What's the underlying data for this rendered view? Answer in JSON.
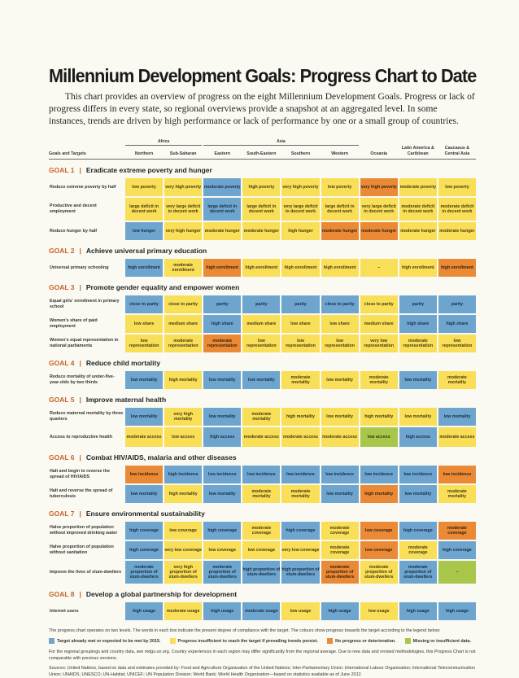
{
  "title": "Millennium Development Goals: Progress Chart to Date",
  "intro": "This chart provides an overview of progress on the eight Millennium Development Goals. Progress or lack of progress differs in every state, so regional overviews provide a snapshot at an aggregated level. In some instances, trends are driven by high performance or lack of performance by one or a small group of countries.",
  "header": {
    "africa": "Africa",
    "asia": "Asia",
    "goals_and_targets": "Goals and Targets",
    "columns": [
      "Northern",
      "Sub-Saharan",
      "Eastern",
      "South-Eastern",
      "Southern",
      "Western",
      "Oceania",
      "Latin America & Caribbean",
      "Caucasus & Central Asia"
    ]
  },
  "colors": {
    "blue": "#6da5cf",
    "yellow": "#f9de57",
    "orange": "#ea8a37",
    "green": "#a7c64a"
  },
  "goals": [
    {
      "num": "GOAL 1",
      "title": "Eradicate extreme poverty and hunger",
      "rows": [
        {
          "label": "Reduce extreme poverty by half",
          "h": "h1",
          "cells": [
            [
              "low poverty",
              "yellow"
            ],
            [
              "very high poverty",
              "yellow"
            ],
            [
              "moderate poverty",
              "blue"
            ],
            [
              "high poverty",
              "yellow"
            ],
            [
              "very high poverty",
              "yellow"
            ],
            [
              "low poverty",
              "yellow"
            ],
            [
              "very high poverty",
              "orange"
            ],
            [
              "moderate poverty",
              "yellow"
            ],
            [
              "low poverty",
              "yellow"
            ]
          ]
        },
        {
          "label": "Productive and decent employment",
          "h": "h3",
          "cells": [
            [
              "large deficit in decent work",
              "yellow"
            ],
            [
              "very large deficit in decent work",
              "yellow"
            ],
            [
              "large deficit in decent work",
              "blue"
            ],
            [
              "large deficit in decent work",
              "yellow"
            ],
            [
              "very large deficit in decent work",
              "yellow"
            ],
            [
              "large deficit in decent work",
              "yellow"
            ],
            [
              "very large deficit in decent work",
              "yellow"
            ],
            [
              "moderate deficit in decent work",
              "yellow"
            ],
            [
              "moderate deficit in decent work",
              "yellow"
            ]
          ]
        },
        {
          "label": "Reduce hunger by half",
          "h": "h1",
          "cells": [
            [
              "low hunger",
              "blue"
            ],
            [
              "very high hunger",
              "yellow"
            ],
            [
              "moderate hunger",
              "yellow"
            ],
            [
              "moderate hunger",
              "yellow"
            ],
            [
              "high hunger",
              "yellow"
            ],
            [
              "moderate hunger",
              "orange"
            ],
            [
              "moderate hunger",
              "orange"
            ],
            [
              "moderate hunger",
              "yellow"
            ],
            [
              "moderate hunger",
              "yellow"
            ]
          ]
        }
      ]
    },
    {
      "num": "GOAL 2",
      "title": "Achieve universal primary education",
      "rows": [
        {
          "label": "Universal primary schooling",
          "h": "h1",
          "cells": [
            [
              "high enrollment",
              "blue"
            ],
            [
              "moderate enrollment",
              "yellow"
            ],
            [
              "high enrollment",
              "orange"
            ],
            [
              "high enrollment",
              "yellow"
            ],
            [
              "high enrollment",
              "yellow"
            ],
            [
              "high enrollment",
              "yellow"
            ],
            [
              "–",
              "yellow"
            ],
            [
              "high enrollment",
              "yellow"
            ],
            [
              "high enrollment",
              "orange"
            ]
          ]
        }
      ]
    },
    {
      "num": "GOAL 3",
      "title": "Promote gender equality and empower women",
      "rows": [
        {
          "label": "Equal girls' enrollment in primary school",
          "h": "h1",
          "cells": [
            [
              "close to parity",
              "blue"
            ],
            [
              "close to parity",
              "yellow"
            ],
            [
              "parity",
              "blue"
            ],
            [
              "parity",
              "blue"
            ],
            [
              "parity",
              "blue"
            ],
            [
              "close to parity",
              "blue"
            ],
            [
              "close to parity",
              "yellow"
            ],
            [
              "parity",
              "blue"
            ],
            [
              "parity",
              "blue"
            ]
          ]
        },
        {
          "label": "Women's share of paid employment",
          "h": "h1",
          "cells": [
            [
              "low share",
              "yellow"
            ],
            [
              "medium share",
              "yellow"
            ],
            [
              "high share",
              "blue"
            ],
            [
              "medium share",
              "yellow"
            ],
            [
              "low share",
              "yellow"
            ],
            [
              "low share",
              "yellow"
            ],
            [
              "medium share",
              "yellow"
            ],
            [
              "high share",
              "blue"
            ],
            [
              "high share",
              "blue"
            ]
          ]
        },
        {
          "label": "Women's equal representation in national parliaments",
          "h": "h1",
          "cells": [
            [
              "low representation",
              "yellow"
            ],
            [
              "moderate representation",
              "yellow"
            ],
            [
              "moderate representation",
              "orange"
            ],
            [
              "low representation",
              "yellow"
            ],
            [
              "low representation",
              "yellow"
            ],
            [
              "low representation",
              "yellow"
            ],
            [
              "very low representation",
              "yellow"
            ],
            [
              "moderate representation",
              "yellow"
            ],
            [
              "low representation",
              "yellow"
            ]
          ]
        }
      ]
    },
    {
      "num": "GOAL 4",
      "title": "Reduce child mortality",
      "rows": [
        {
          "label": "Reduce mortality of under-five-year-olds by two thirds",
          "h": "h1",
          "cells": [
            [
              "low mortality",
              "blue"
            ],
            [
              "high mortality",
              "yellow"
            ],
            [
              "low mortality",
              "blue"
            ],
            [
              "low mortality",
              "blue"
            ],
            [
              "moderate mortality",
              "yellow"
            ],
            [
              "low mortality",
              "yellow"
            ],
            [
              "moderate mortality",
              "yellow"
            ],
            [
              "low mortality",
              "blue"
            ],
            [
              "moderate mortality",
              "yellow"
            ]
          ]
        }
      ]
    },
    {
      "num": "GOAL 5",
      "title": "Improve maternal health",
      "rows": [
        {
          "label": "Reduce maternal mortality by three quarters",
          "h": "h1",
          "cells": [
            [
              "low mortality",
              "blue"
            ],
            [
              "very high mortality",
              "yellow"
            ],
            [
              "low mortality",
              "blue"
            ],
            [
              "moderate mortality",
              "yellow"
            ],
            [
              "high mortality",
              "yellow"
            ],
            [
              "low mortality",
              "yellow"
            ],
            [
              "high mortality",
              "yellow"
            ],
            [
              "low mortality",
              "yellow"
            ],
            [
              "low mortality",
              "blue"
            ]
          ]
        },
        {
          "label": "Access to reproductive health",
          "h": "h2",
          "cells": [
            [
              "moderate access",
              "yellow"
            ],
            [
              "low access",
              "yellow"
            ],
            [
              "high access",
              "blue"
            ],
            [
              "moderate access",
              "yellow"
            ],
            [
              "moderate access",
              "yellow"
            ],
            [
              "moderate access",
              "yellow"
            ],
            [
              "low access",
              "green"
            ],
            [
              "high access",
              "blue"
            ],
            [
              "moderate access",
              "yellow"
            ]
          ]
        }
      ]
    },
    {
      "num": "GOAL 6",
      "title": "Combat HIV/AIDS, malaria and other diseases",
      "rows": [
        {
          "label": "Halt and begin to reverse the spread of HIV/AIDS",
          "h": "h1",
          "cells": [
            [
              "low incidence",
              "orange"
            ],
            [
              "high incidence",
              "blue"
            ],
            [
              "low incidence",
              "blue"
            ],
            [
              "low incidence",
              "blue"
            ],
            [
              "low incidence",
              "blue"
            ],
            [
              "low incidence",
              "blue"
            ],
            [
              "low incidence",
              "blue"
            ],
            [
              "low incidence",
              "blue"
            ],
            [
              "low incidence",
              "orange"
            ]
          ]
        },
        {
          "label": "Halt and reverse the spread of tuberculosis",
          "h": "h1",
          "cells": [
            [
              "low mortality",
              "blue"
            ],
            [
              "high mortality",
              "yellow"
            ],
            [
              "low mortality",
              "blue"
            ],
            [
              "moderate mortality",
              "yellow"
            ],
            [
              "moderate mortality",
              "yellow"
            ],
            [
              "low mortality",
              "blue"
            ],
            [
              "high mortality",
              "orange"
            ],
            [
              "low mortality",
              "blue"
            ],
            [
              "moderate mortality",
              "yellow"
            ]
          ]
        }
      ]
    },
    {
      "num": "GOAL 7",
      "title": "Ensure environmental sustainability",
      "rows": [
        {
          "label": "Halve proportion of population without improved drinking water",
          "h": "h1",
          "cells": [
            [
              "high coverage",
              "blue"
            ],
            [
              "low coverage",
              "yellow"
            ],
            [
              "high coverage",
              "blue"
            ],
            [
              "moderate coverage",
              "yellow"
            ],
            [
              "high coverage",
              "blue"
            ],
            [
              "moderate coverage",
              "yellow"
            ],
            [
              "low coverage",
              "orange"
            ],
            [
              "high coverage",
              "blue"
            ],
            [
              "moderate coverage",
              "orange"
            ]
          ]
        },
        {
          "label": "Halve proportion of population without sanitation",
          "h": "h1",
          "cells": [
            [
              "high coverage",
              "blue"
            ],
            [
              "very low coverage",
              "yellow"
            ],
            [
              "low coverage",
              "yellow"
            ],
            [
              "low coverage",
              "yellow"
            ],
            [
              "very low coverage",
              "yellow"
            ],
            [
              "moderate coverage",
              "yellow"
            ],
            [
              "low coverage",
              "orange"
            ],
            [
              "moderate coverage",
              "yellow"
            ],
            [
              "high coverage",
              "blue"
            ]
          ]
        },
        {
          "label": "Improve the lives of slum-dwellers",
          "h": "h3",
          "cells": [
            [
              "moderate proportion of slum-dwellers",
              "blue"
            ],
            [
              "very high proportion of slum-dwellers",
              "yellow"
            ],
            [
              "moderate proportion of slum-dwellers",
              "blue"
            ],
            [
              "high proportion of slum-dwellers",
              "blue"
            ],
            [
              "high proportion of slum-dwellers",
              "blue"
            ],
            [
              "moderate proportion of slum-dwellers",
              "orange"
            ],
            [
              "moderate proportion of slum-dwellers",
              "yellow"
            ],
            [
              "moderate proportion of slum-dwellers",
              "blue"
            ],
            [
              "–",
              "green"
            ]
          ]
        }
      ]
    },
    {
      "num": "GOAL 8",
      "title": "Develop a global partnership for development",
      "rows": [
        {
          "label": "Internet users",
          "h": "h1",
          "cells": [
            [
              "high usage",
              "blue"
            ],
            [
              "moderate usage",
              "yellow"
            ],
            [
              "high usage",
              "blue"
            ],
            [
              "moderate usage",
              "blue"
            ],
            [
              "low usage",
              "yellow"
            ],
            [
              "high usage",
              "blue"
            ],
            [
              "low usage",
              "yellow"
            ],
            [
              "high usage",
              "blue"
            ],
            [
              "high usage",
              "blue"
            ]
          ]
        }
      ]
    }
  ],
  "legend_intro": "The progress chart operates on two levels. The words in each box indicate the present degree of compliance with the target. The colours show progress towards the target according to the legend below:",
  "legend": [
    {
      "label": "Target already met or expected to be met by 2015.",
      "color": "blue"
    },
    {
      "label": "Progress insufficient to reach the target if prevailing trends persist.",
      "color": "yellow"
    },
    {
      "label": "No progress or deterioration.",
      "color": "orange"
    },
    {
      "label": "Missing or insufficient data.",
      "color": "green"
    }
  ],
  "note": "For the regional groupings and country data, see mdgs.un.org. Country experiences in each region may differ significantly from the regional average. Due to new data and revised methodologies, this Progress Chart is not comparable with previous versions.",
  "sources": "Sources: United Nations, based on data and estimates provided by: Food and Agriculture Organization of the United Nations; Inter-Parliamentary Union; International Labour Organization; International Telecommunication Union; UNAIDS; UNESCO; UN-Habitat; UNICEF; UN Population Division; World Bank; World Health Organization—based on statistics available as of June 2012."
}
